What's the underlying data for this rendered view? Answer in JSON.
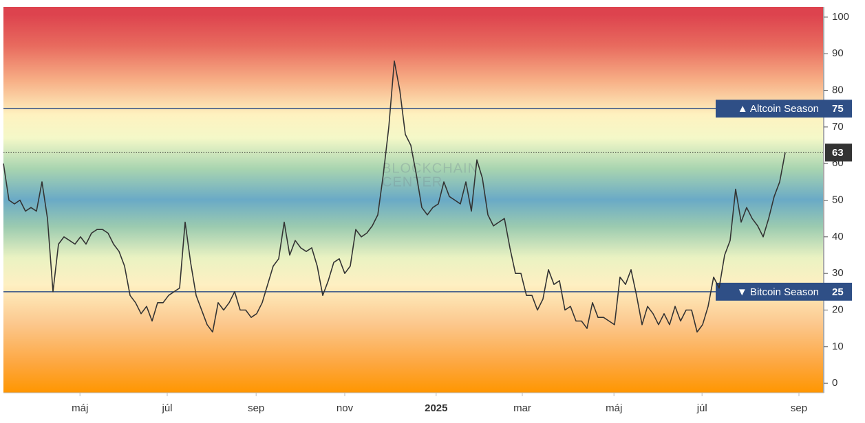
{
  "chart_data": {
    "type": "line",
    "watermark": [
      "BLOCKCHAIN",
      "CENTER"
    ],
    "values": [
      60,
      50,
      49,
      50,
      47,
      48,
      47,
      55,
      45,
      25,
      38,
      40,
      39,
      38,
      40,
      38,
      41,
      42,
      42,
      41,
      38,
      36,
      32,
      24,
      22,
      19,
      21,
      17,
      22,
      22,
      24,
      25,
      26,
      44,
      33,
      24,
      20,
      16,
      14,
      22,
      20,
      22,
      25,
      20,
      20,
      18,
      19,
      22,
      27,
      32,
      34,
      44,
      35,
      39,
      37,
      36,
      37,
      32,
      24,
      28,
      33,
      34,
      30,
      32,
      42,
      40,
      41,
      43,
      46,
      57,
      70,
      88,
      80,
      68,
      65,
      57,
      48,
      46,
      48,
      49,
      55,
      51,
      50,
      49,
      55,
      47,
      61,
      56,
      46,
      43,
      44,
      45,
      37,
      30,
      30,
      24,
      24,
      20,
      23,
      31,
      27,
      28,
      20,
      21,
      17,
      17,
      15,
      22,
      18,
      18,
      17,
      16,
      29,
      27,
      31,
      24,
      16,
      21,
      19,
      16,
      19,
      16,
      21,
      17,
      20,
      20,
      14,
      16,
      21,
      29,
      26,
      35,
      39,
      53,
      44,
      48,
      45,
      43,
      40,
      45,
      51,
      55,
      63
    ],
    "color": "#333333",
    "xlim": [
      0,
      148.875
    ],
    "xticks": [
      {
        "value": 13.9,
        "label": "máj"
      },
      {
        "value": 29.75,
        "label": "júl"
      },
      {
        "value": 45.9,
        "label": "sep"
      },
      {
        "value": 62,
        "label": "nov"
      },
      {
        "value": 78.6,
        "label": "2025",
        "bold": true
      },
      {
        "value": 94.25,
        "label": "mar"
      },
      {
        "value": 110.9,
        "label": "máj"
      },
      {
        "value": 126.9,
        "label": "júl"
      },
      {
        "value": 144.5,
        "label": "sep"
      }
    ],
    "ylim": [
      -2.6,
      102.8
    ],
    "yticks": [
      0,
      10,
      20,
      30,
      40,
      50,
      60,
      70,
      80,
      90,
      100
    ],
    "reference_lines": [
      {
        "label": "▲ Altcoin Season",
        "value": 75,
        "color": "#2f4f86"
      },
      {
        "label": "▼ Bitcoin Season",
        "value": 25,
        "color": "#2f4f86"
      }
    ]
  }
}
